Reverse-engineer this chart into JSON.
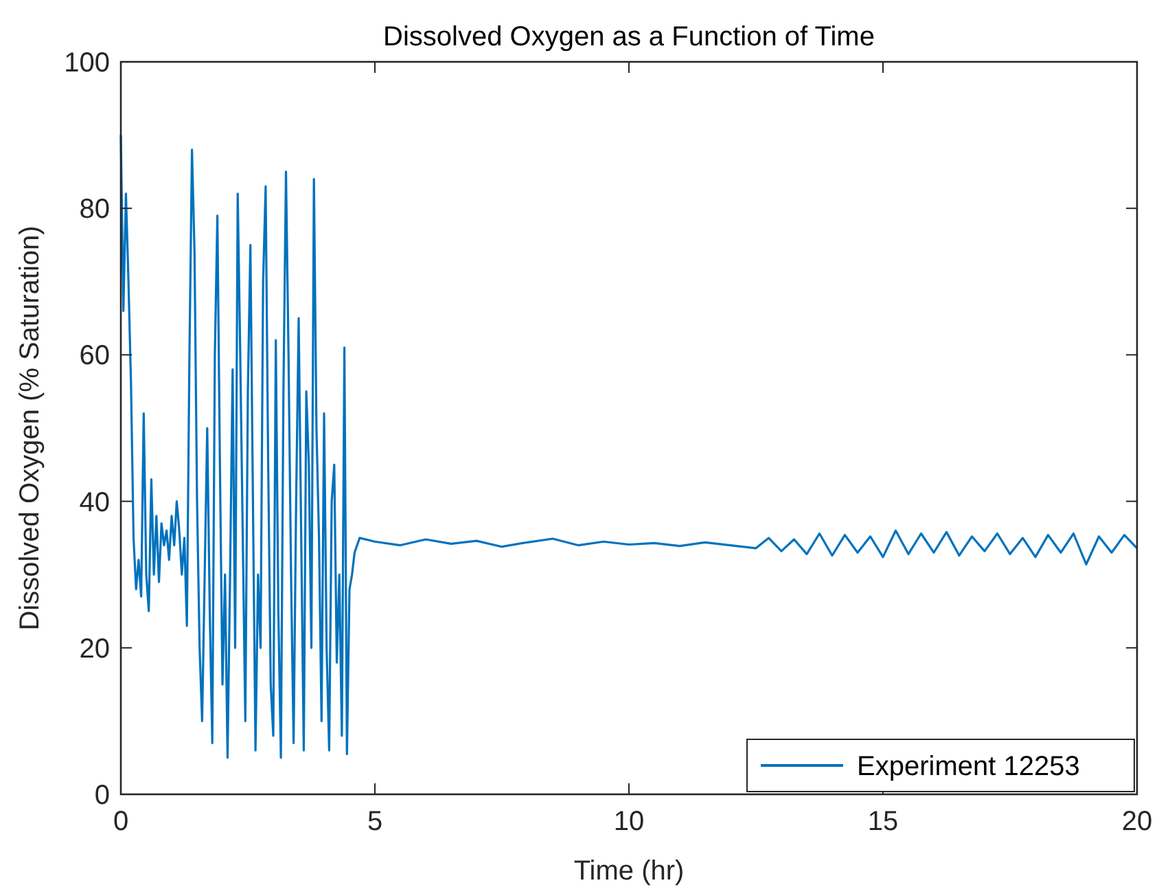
{
  "chart_data": {
    "type": "line",
    "title": "Dissolved Oxygen as a Function of Time",
    "xlabel": "Time (hr)",
    "ylabel": "Dissolved Oxygen (% Saturation)",
    "xlim": [
      0,
      20
    ],
    "ylim": [
      0,
      100
    ],
    "xticks": [
      0,
      5,
      10,
      15,
      20
    ],
    "yticks": [
      0,
      20,
      40,
      60,
      80,
      100
    ],
    "grid": false,
    "legend": "bottom right",
    "marker": "none",
    "line_style": "solid",
    "series": [
      {
        "name": "Experiment 12253",
        "color": "#0072bd",
        "x": [
          0,
          0.05,
          0.1,
          0.15,
          0.2,
          0.25,
          0.3,
          0.35,
          0.4,
          0.45,
          0.5,
          0.55,
          0.6,
          0.65,
          0.7,
          0.75,
          0.8,
          0.85,
          0.9,
          0.95,
          1.0,
          1.05,
          1.1,
          1.15,
          1.2,
          1.25,
          1.3,
          1.35,
          1.4,
          1.45,
          1.5,
          1.55,
          1.6,
          1.7,
          1.75,
          1.8,
          1.85,
          1.9,
          1.95,
          2.0,
          2.05,
          2.1,
          2.15,
          2.2,
          2.25,
          2.3,
          2.35,
          2.4,
          2.45,
          2.5,
          2.55,
          2.6,
          2.65,
          2.7,
          2.75,
          2.8,
          2.85,
          2.9,
          2.95,
          3.0,
          3.05,
          3.1,
          3.15,
          3.2,
          3.25,
          3.3,
          3.35,
          3.4,
          3.45,
          3.5,
          3.55,
          3.6,
          3.65,
          3.7,
          3.75,
          3.8,
          3.85,
          3.9,
          3.95,
          4.0,
          4.05,
          4.1,
          4.15,
          4.2,
          4.25,
          4.3,
          4.35,
          4.4,
          4.45,
          4.5,
          4.55,
          4.6,
          4.65,
          4.7,
          5,
          5.5,
          6,
          6.5,
          7,
          7.5,
          8,
          8.5,
          9,
          9.5,
          10,
          10.5,
          11,
          11.5,
          12,
          12.5,
          12.75,
          13,
          13.25,
          13.5,
          13.75,
          14,
          14.25,
          14.5,
          14.75,
          15,
          15.25,
          15.5,
          15.75,
          16,
          16.25,
          16.5,
          16.75,
          17,
          17.25,
          17.5,
          17.75,
          18,
          18.25,
          18.5,
          18.75,
          19,
          19.25,
          19.5,
          19.75,
          20
        ],
        "values": [
          90,
          66,
          82,
          70,
          56,
          35,
          28,
          32,
          27,
          52,
          30,
          25,
          43,
          30,
          38,
          29,
          37,
          34,
          36,
          32,
          38,
          34,
          40,
          36,
          30,
          35,
          23,
          60,
          88,
          74,
          40,
          20,
          10,
          50,
          25,
          7,
          60,
          79,
          45,
          15,
          30,
          5,
          30,
          58,
          20,
          82,
          60,
          35,
          10,
          55,
          75,
          40,
          6,
          30,
          20,
          70,
          83,
          45,
          15,
          8,
          62,
          25,
          5,
          55,
          85,
          60,
          30,
          7,
          40,
          65,
          35,
          6,
          55,
          45,
          20,
          84,
          50,
          35,
          10,
          52,
          20,
          6,
          40,
          45,
          18,
          30,
          8,
          61,
          5.5,
          28,
          30,
          33,
          34,
          35,
          34.5,
          34,
          34.8,
          34.2,
          34.6,
          33.8,
          34.4,
          34.9,
          34,
          34.5,
          34.1,
          34.3,
          33.9,
          34.4,
          34,
          33.6,
          35,
          33.2,
          34.8,
          32.8,
          35.6,
          32.6,
          35.4,
          33,
          35.2,
          32.4,
          36,
          32.8,
          35.6,
          33,
          35.8,
          32.6,
          35.2,
          33.2,
          35.6,
          32.8,
          35,
          32.4,
          35.4,
          33,
          35.6,
          31.4,
          35.2,
          33,
          35.4,
          33.6
        ]
      }
    ]
  }
}
